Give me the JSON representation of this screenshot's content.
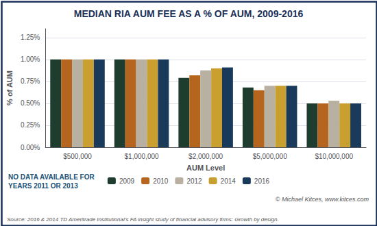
{
  "chart_data": {
    "type": "bar",
    "title": "MEDIAN RIA AUM FEE AS A % OF AUM, 2009-2016",
    "categories": [
      "$500,000",
      "$1,000,000",
      "$2,000,000",
      "$5,000,000",
      "$10,000,000"
    ],
    "series": [
      {
        "name": "2009",
        "color": "#1e3d2f",
        "values": [
          1.0,
          1.0,
          0.79,
          0.68,
          0.5
        ]
      },
      {
        "name": "2010",
        "color": "#b5651d",
        "values": [
          1.0,
          1.0,
          0.82,
          0.65,
          0.5
        ]
      },
      {
        "name": "2012",
        "color": "#b8b0a0",
        "values": [
          1.0,
          1.0,
          0.875,
          0.7,
          0.53
        ]
      },
      {
        "name": "2014",
        "color": "#c9a030",
        "values": [
          1.0,
          1.0,
          0.9,
          0.7,
          0.5
        ]
      },
      {
        "name": "2016",
        "color": "#1a3a5c",
        "values": [
          1.0,
          1.0,
          0.91,
          0.7,
          0.5
        ]
      }
    ],
    "xlabel": "AUM Level",
    "ylabel": "% of AUM",
    "ylim": [
      0,
      1.35
    ],
    "yticks": [
      {
        "value": 0.0,
        "label": "0.00%"
      },
      {
        "value": 0.25,
        "label": "0.25%"
      },
      {
        "value": 0.5,
        "label": "0.50%"
      },
      {
        "value": 0.75,
        "label": "0.75%"
      },
      {
        "value": 1.0,
        "label": "1.00%"
      },
      {
        "value": 1.25,
        "label": "1.25%"
      }
    ],
    "grid": true,
    "legend": "bottom",
    "annotations": [
      "NO DATA AVAILABLE FOR\nYEARS 2011 OR 2013",
      "© Michael Kitces, www.kitces.com",
      "Source: 2016 & 2014 TD Ameritrade Institutional’s FA insight study of financial advisory firms: Growth by design."
    ]
  }
}
